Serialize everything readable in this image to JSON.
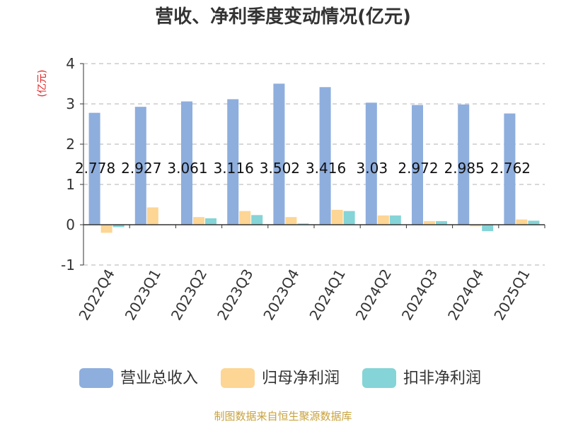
{
  "chart_data": {
    "type": "bar",
    "title": "营收、净利季度变动情况(亿元)",
    "ylabel": "(亿元)",
    "ylim": [
      -1,
      4
    ],
    "yticks": [
      -1,
      0,
      1,
      2,
      3,
      4
    ],
    "grid": true,
    "legend_position": "bottom",
    "categories": [
      "2022Q4",
      "2023Q1",
      "2023Q2",
      "2023Q3",
      "2023Q4",
      "2024Q1",
      "2024Q2",
      "2024Q3",
      "2024Q4",
      "2025Q1"
    ],
    "series": [
      {
        "name": "营业总收入",
        "color": "#8eaedd",
        "values": [
          2.778,
          2.927,
          3.061,
          3.116,
          3.502,
          3.416,
          3.03,
          2.972,
          2.985,
          2.762
        ]
      },
      {
        "name": "归母净利润",
        "color": "#fdd594",
        "values": [
          -0.2,
          0.43,
          0.19,
          0.34,
          0.19,
          0.37,
          0.23,
          0.09,
          -0.04,
          0.13
        ]
      },
      {
        "name": "扣非净利润",
        "color": "#85d4d7",
        "values": [
          -0.06,
          0.01,
          0.16,
          0.24,
          0.03,
          0.34,
          0.23,
          0.09,
          -0.16,
          0.1
        ]
      }
    ],
    "data_labels": [
      "2.778",
      "2.927",
      "3.061",
      "3.116",
      "3.502",
      "3.416",
      "3.03",
      "2.972",
      "2.985",
      "2.762"
    ]
  },
  "source": "制图数据来自恒生聚源数据库",
  "colors": {
    "title": "#333333",
    "unit": "#e02020",
    "source": "#c8a23c",
    "grid": "#cccccc",
    "axis": "#333333"
  }
}
